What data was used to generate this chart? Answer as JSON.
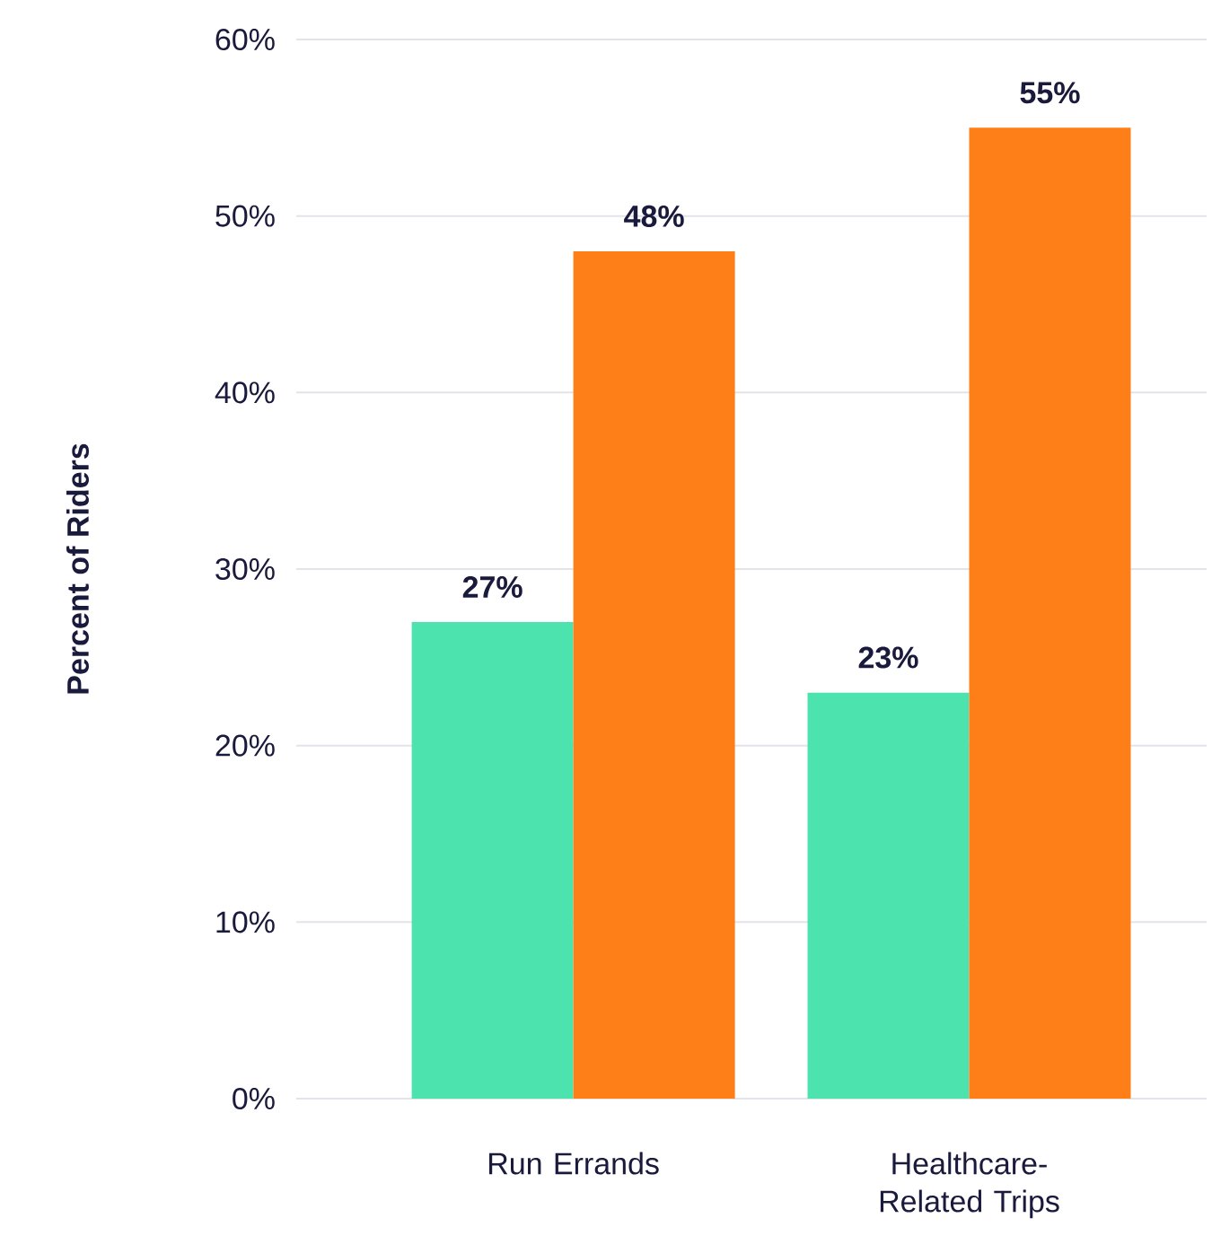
{
  "chart_data": {
    "type": "bar",
    "ylabel": "Percent of Riders",
    "categories": [
      "Run Errands",
      "Healthcare-Related Trips"
    ],
    "series": [
      {
        "color": "#4de3af",
        "values": [
          27,
          23
        ],
        "value_labels": [
          "27%",
          "23%"
        ]
      },
      {
        "color": "#fe7f17",
        "values": [
          48,
          55
        ],
        "value_labels": [
          "48%",
          "55%"
        ]
      }
    ],
    "ylim": [
      0,
      60
    ],
    "yticks": [
      {
        "value": 0,
        "label": "0%"
      },
      {
        "value": 10,
        "label": "10%"
      },
      {
        "value": 20,
        "label": "20%"
      },
      {
        "value": 30,
        "label": "30%"
      },
      {
        "value": 40,
        "label": "40%"
      },
      {
        "value": 50,
        "label": "50%"
      },
      {
        "value": 60,
        "label": "60%"
      }
    ],
    "grid": "y"
  }
}
